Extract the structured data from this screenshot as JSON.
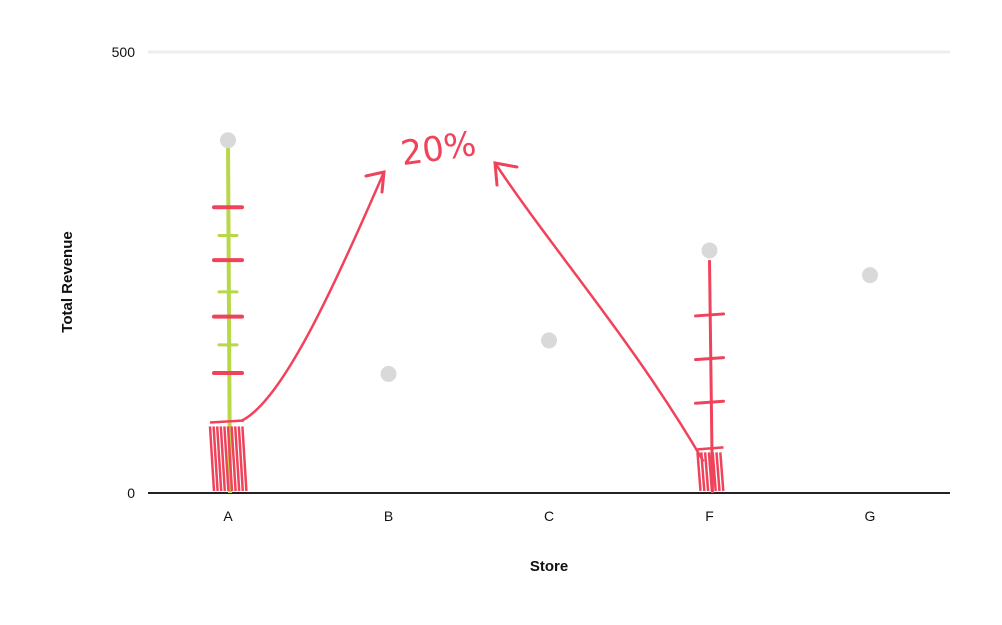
{
  "chart_data": {
    "type": "scatter",
    "title": "",
    "xlabel": "Store",
    "ylabel": "Total Revenue",
    "categories": [
      "A",
      "B",
      "C",
      "F",
      "G"
    ],
    "values": [
      400,
      135,
      173,
      275,
      247
    ],
    "ylim": [
      0,
      500
    ],
    "yticks": [
      0,
      500
    ],
    "grid": true,
    "legend": "none",
    "point_color": "#d9d9d9",
    "annotation": {
      "text": "20%",
      "color": "#f0435b",
      "from_categories": [
        "A",
        "F"
      ],
      "to_category": "A",
      "highlight_color": "#b8d84a"
    }
  }
}
